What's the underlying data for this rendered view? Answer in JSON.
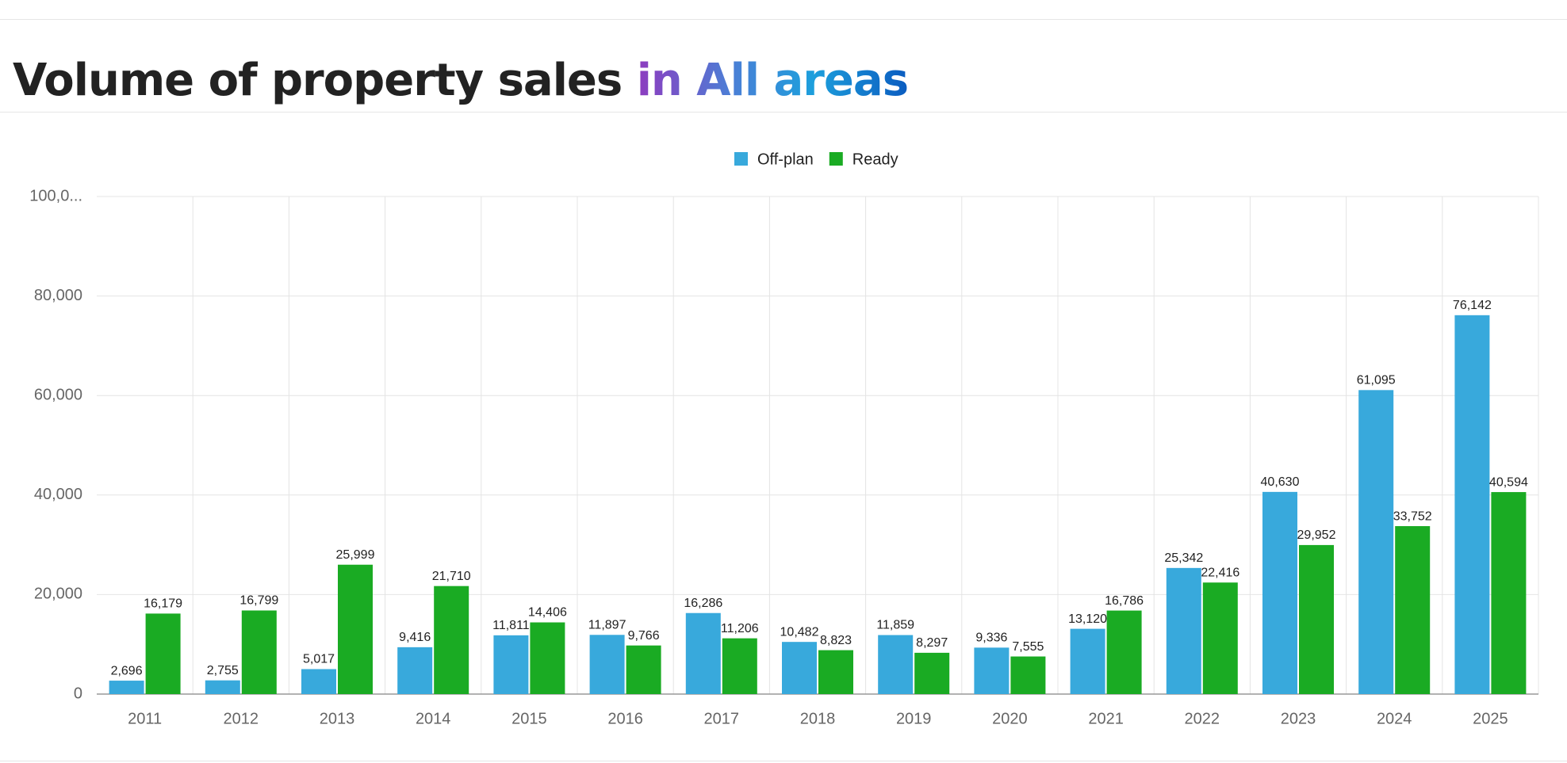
{
  "chart_data": {
    "type": "bar",
    "title": "Volume of property sales",
    "title_highlight": "in All areas",
    "categories": [
      "2011",
      "2012",
      "2013",
      "2014",
      "2015",
      "2016",
      "2017",
      "2018",
      "2019",
      "2020",
      "2021",
      "2022",
      "2023",
      "2024",
      "2025"
    ],
    "series": [
      {
        "name": "Off-plan",
        "color": "#38a9dc",
        "values": [
          2696,
          2755,
          5017,
          9416,
          11811,
          11897,
          16286,
          10482,
          11859,
          9336,
          13120,
          25342,
          40630,
          61095,
          76142
        ],
        "value_labels": [
          "2,696",
          "2,755",
          "5,017",
          "9,416",
          "11,811",
          "11,897",
          "16,286",
          "10,482",
          "11,859",
          "9,336",
          "13,120",
          "25,342",
          "40,630",
          "61,095",
          "76,142"
        ]
      },
      {
        "name": "Ready",
        "color": "#1aab23",
        "values": [
          16179,
          16799,
          25999,
          21710,
          14406,
          9766,
          11206,
          8823,
          8297,
          7555,
          16786,
          22416,
          29952,
          33752,
          40594
        ],
        "value_labels": [
          "16,179",
          "16,799",
          "25,999",
          "21,710",
          "14,406",
          "9,766",
          "11,206",
          "8,823",
          "8,297",
          "7,555",
          "16,786",
          "22,416",
          "29,952",
          "33,752",
          "40,594"
        ]
      }
    ],
    "ylim": [
      0,
      100000
    ],
    "yticks": [
      0,
      {
        "value": 20000,
        "label": "20,000"
      },
      {
        "value": 40000,
        "label": "40,000"
      },
      {
        "value": 60000,
        "label": "60,000"
      },
      {
        "value": 80000,
        "label": "80,000"
      },
      {
        "value": 100000,
        "label": "100,0..."
      }
    ],
    "grid": true,
    "legend": "top"
  }
}
